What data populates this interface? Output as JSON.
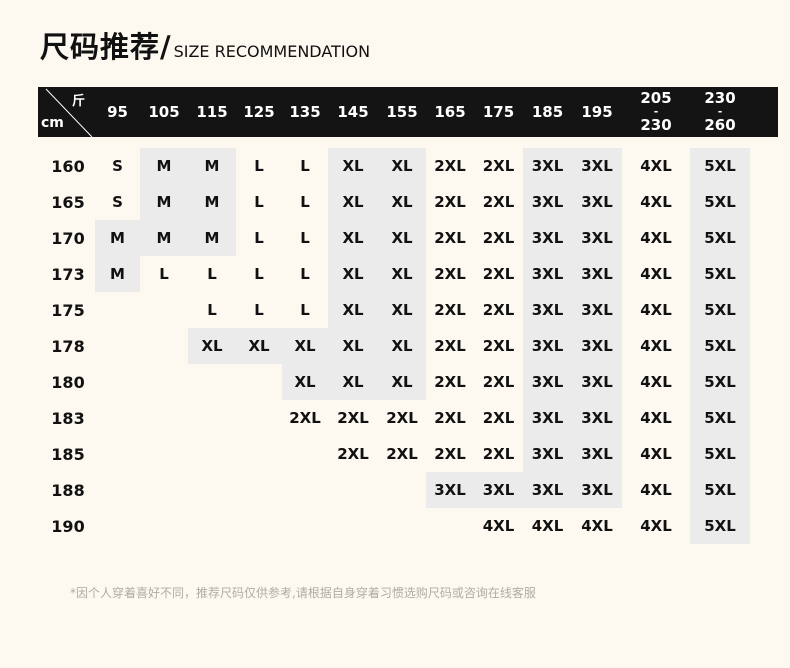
{
  "title": {
    "cn": "尺码推荐/",
    "en": "SIZE RECOMMENDATION"
  },
  "header": {
    "corner_weight_unit": "斤",
    "corner_height_unit": "cm",
    "weights": [
      [
        "95"
      ],
      [
        "105"
      ],
      [
        "115"
      ],
      [
        "125"
      ],
      [
        "135"
      ],
      [
        "145"
      ],
      [
        "155"
      ],
      [
        "165"
      ],
      [
        "175"
      ],
      [
        "185"
      ],
      [
        "195"
      ],
      [
        "205",
        "-",
        "230"
      ],
      [
        "230",
        "-",
        "260"
      ]
    ]
  },
  "colors": {
    "header_bg": "#141414",
    "shade": "#ebebeb",
    "background": "#fdf8f0"
  },
  "shaded_sizes": [
    "M",
    "XL",
    "3XL",
    "5XL"
  ],
  "rows": [
    {
      "height": "160",
      "sizes": [
        "S",
        "M",
        "M",
        "L",
        "L",
        "XL",
        "XL",
        "2XL",
        "2XL",
        "3XL",
        "3XL",
        "4XL",
        "5XL"
      ]
    },
    {
      "height": "165",
      "sizes": [
        "S",
        "M",
        "M",
        "L",
        "L",
        "XL",
        "XL",
        "2XL",
        "2XL",
        "3XL",
        "3XL",
        "4XL",
        "5XL"
      ]
    },
    {
      "height": "170",
      "sizes": [
        "M",
        "M",
        "M",
        "L",
        "L",
        "XL",
        "XL",
        "2XL",
        "2XL",
        "3XL",
        "3XL",
        "4XL",
        "5XL"
      ]
    },
    {
      "height": "173",
      "sizes": [
        "M",
        "L",
        "L",
        "L",
        "L",
        "XL",
        "XL",
        "2XL",
        "2XL",
        "3XL",
        "3XL",
        "4XL",
        "5XL"
      ]
    },
    {
      "height": "175",
      "sizes": [
        "",
        "",
        "L",
        "L",
        "L",
        "XL",
        "XL",
        "2XL",
        "2XL",
        "3XL",
        "3XL",
        "4XL",
        "5XL"
      ]
    },
    {
      "height": "178",
      "sizes": [
        "",
        "",
        "XL",
        "XL",
        "XL",
        "XL",
        "XL",
        "2XL",
        "2XL",
        "3XL",
        "3XL",
        "4XL",
        "5XL"
      ]
    },
    {
      "height": "180",
      "sizes": [
        "",
        "",
        "",
        "",
        "XL",
        "XL",
        "XL",
        "2XL",
        "2XL",
        "3XL",
        "3XL",
        "4XL",
        "5XL"
      ]
    },
    {
      "height": "183",
      "sizes": [
        "",
        "",
        "",
        "",
        "2XL",
        "2XL",
        "2XL",
        "2XL",
        "2XL",
        "3XL",
        "3XL",
        "4XL",
        "5XL"
      ]
    },
    {
      "height": "185",
      "sizes": [
        "",
        "",
        "",
        "",
        "",
        "2XL",
        "2XL",
        "2XL",
        "2XL",
        "3XL",
        "3XL",
        "4XL",
        "5XL"
      ]
    },
    {
      "height": "188",
      "sizes": [
        "",
        "",
        "",
        "",
        "",
        "",
        "",
        "3XL",
        "3XL",
        "3XL",
        "3XL",
        "4XL",
        "5XL"
      ]
    },
    {
      "height": "190",
      "sizes": [
        "",
        "",
        "",
        "",
        "",
        "",
        "",
        "",
        "4XL",
        "4XL",
        "4XL",
        "4XL",
        "5XL"
      ]
    }
  ],
  "note": "*因个人穿着喜好不同，推荐尺码仅供参考,请根据自身穿着习惯选购尺码或咨询在线客服"
}
